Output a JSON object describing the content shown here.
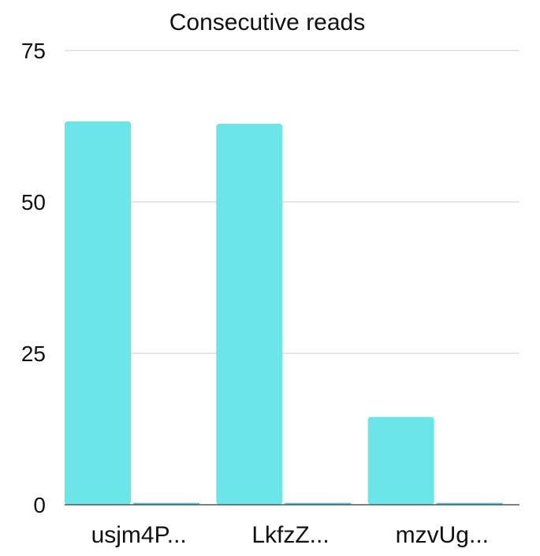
{
  "chart_data": {
    "type": "bar",
    "title": "Consecutive reads",
    "categories": [
      "usjm4P...",
      "LkfzZ...",
      "mzvUg..."
    ],
    "series": [
      {
        "values": [
          63.3,
          62.9,
          14.5
        ],
        "color": "#6ce5e8"
      },
      {
        "values": [
          0.3,
          0.3,
          0.3
        ],
        "color": "#4ec7d2"
      }
    ],
    "ylim": [
      0,
      75
    ],
    "yticks": [
      0,
      25,
      50,
      75
    ],
    "grid": true,
    "legend": "none"
  }
}
